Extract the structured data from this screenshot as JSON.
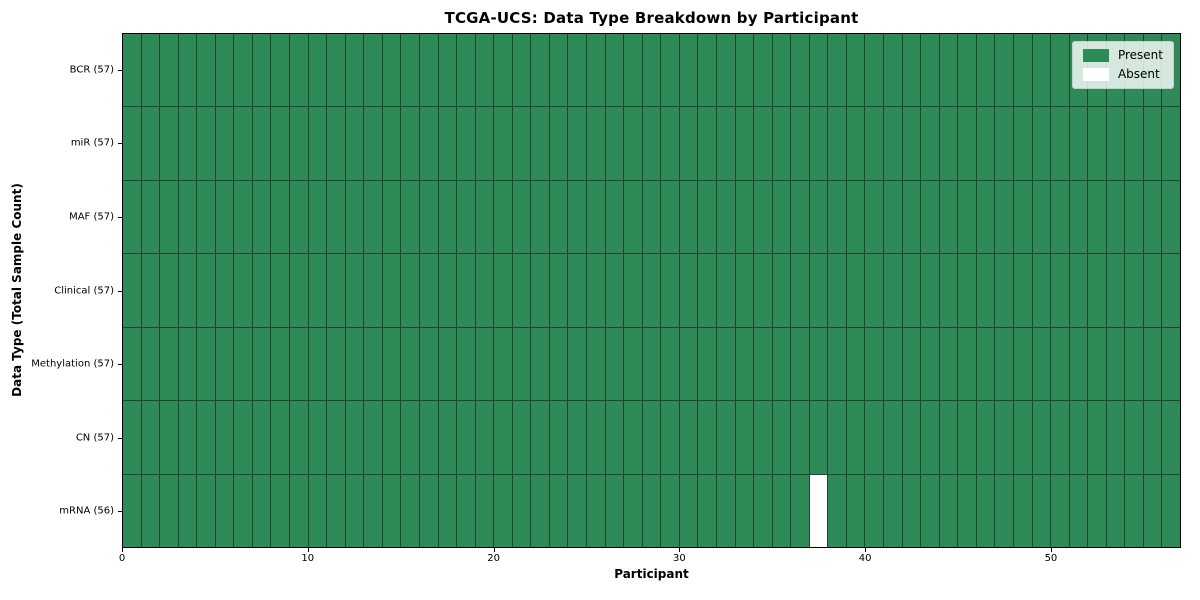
{
  "chart_data": {
    "type": "heatmap",
    "title": "TCGA-UCS: Data Type Breakdown by Participant",
    "xlabel": "Participant",
    "ylabel": "Data Type (Total Sample Count)",
    "n_participants": 57,
    "x_range": [
      0,
      57
    ],
    "x_ticks": [
      0,
      10,
      20,
      30,
      40,
      50
    ],
    "rows_top_to_bottom": [
      {
        "label": "BCR (57)",
        "data_type": "BCR",
        "sample_count": 57,
        "absent_participants": []
      },
      {
        "label": "miR (57)",
        "data_type": "miR",
        "sample_count": 57,
        "absent_participants": []
      },
      {
        "label": "MAF (57)",
        "data_type": "MAF",
        "sample_count": 57,
        "absent_participants": []
      },
      {
        "label": "Clinical (57)",
        "data_type": "Clinical",
        "sample_count": 57,
        "absent_participants": []
      },
      {
        "label": "Methylation (57)",
        "data_type": "Methylation",
        "sample_count": 57,
        "absent_participants": []
      },
      {
        "label": "CN (57)",
        "data_type": "CN",
        "sample_count": 57,
        "absent_participants": []
      },
      {
        "label": "mRNA (56)",
        "data_type": "mRNA",
        "sample_count": 56,
        "absent_participants": [
          37
        ]
      }
    ],
    "legend": {
      "position": "upper right",
      "entries": [
        {
          "label": "Present",
          "color": "#2e8b57"
        },
        {
          "label": "Absent",
          "color": "#ffffff"
        }
      ]
    },
    "colors": {
      "present": "#2e8b57",
      "absent": "#ffffff",
      "cell_edge": "#21452f",
      "spine": "#000000",
      "background": "#ffffff"
    }
  }
}
